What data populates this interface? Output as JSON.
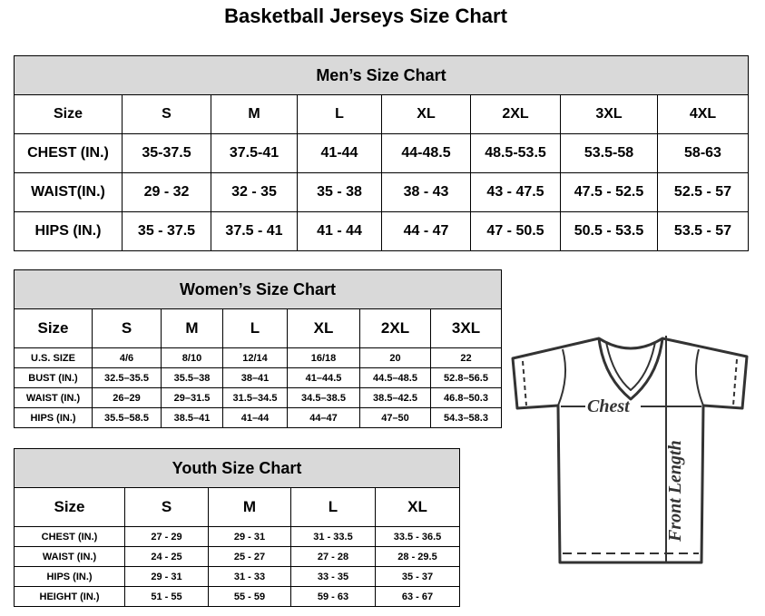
{
  "title": "Basketball Jerseys Size Chart",
  "men": {
    "title": "Men’s Size Chart",
    "rows": [
      [
        "Size",
        "S",
        "M",
        "L",
        "XL",
        "2XL",
        "3XL",
        "4XL"
      ],
      [
        "CHEST (IN.)",
        "35-37.5",
        "37.5-41",
        "41-44",
        "44-48.5",
        "48.5-53.5",
        "53.5-58",
        "58-63"
      ],
      [
        "WAIST(IN.)",
        "29 - 32",
        "32 - 35",
        "35 - 38",
        "38 - 43",
        "43 - 47.5",
        "47.5 - 52.5",
        "52.5 - 57"
      ],
      [
        "HIPS (IN.)",
        "35 - 37.5",
        "37.5 - 41",
        "41 - 44",
        "44 - 47",
        "47 - 50.5",
        "50.5 - 53.5",
        "53.5 - 57"
      ]
    ]
  },
  "women": {
    "title": "Women’s Size Chart",
    "rows": [
      [
        "Size",
        "S",
        "M",
        "L",
        "XL",
        "2XL",
        "3XL"
      ],
      [
        "U.S. SIZE",
        "4/6",
        "8/10",
        "12/14",
        "16/18",
        "20",
        "22"
      ],
      [
        "BUST (IN.)",
        "32.5–35.5",
        "35.5–38",
        "38–41",
        "41–44.5",
        "44.5–48.5",
        "52.8–56.5"
      ],
      [
        "WAIST (IN.)",
        "26–29",
        "29–31.5",
        "31.5–34.5",
        "34.5–38.5",
        "38.5–42.5",
        "46.8–50.3"
      ],
      [
        "HIPS (IN.)",
        "35.5–58.5",
        "38.5–41",
        "41–44",
        "44–47",
        "47–50",
        "54.3–58.3"
      ]
    ]
  },
  "youth": {
    "title": "Youth Size Chart",
    "rows": [
      [
        "Size",
        "S",
        "M",
        "L",
        "XL"
      ],
      [
        "CHEST (IN.)",
        "27 - 29",
        "29 - 31",
        "31 - 33.5",
        "33.5 - 36.5"
      ],
      [
        "WAIST (IN.)",
        "24 - 25",
        "25 - 27",
        "27 - 28",
        "28 - 29.5"
      ],
      [
        "HIPS (IN.)",
        "29 - 31",
        "31 - 33",
        "33 - 35",
        "35 - 37"
      ],
      [
        "HEIGHT (IN.)",
        "51 - 55",
        "55 - 59",
        "59 - 63",
        "63 - 67"
      ]
    ]
  },
  "diagram": {
    "chest_label": "Chest",
    "length_label": "Front Length"
  }
}
